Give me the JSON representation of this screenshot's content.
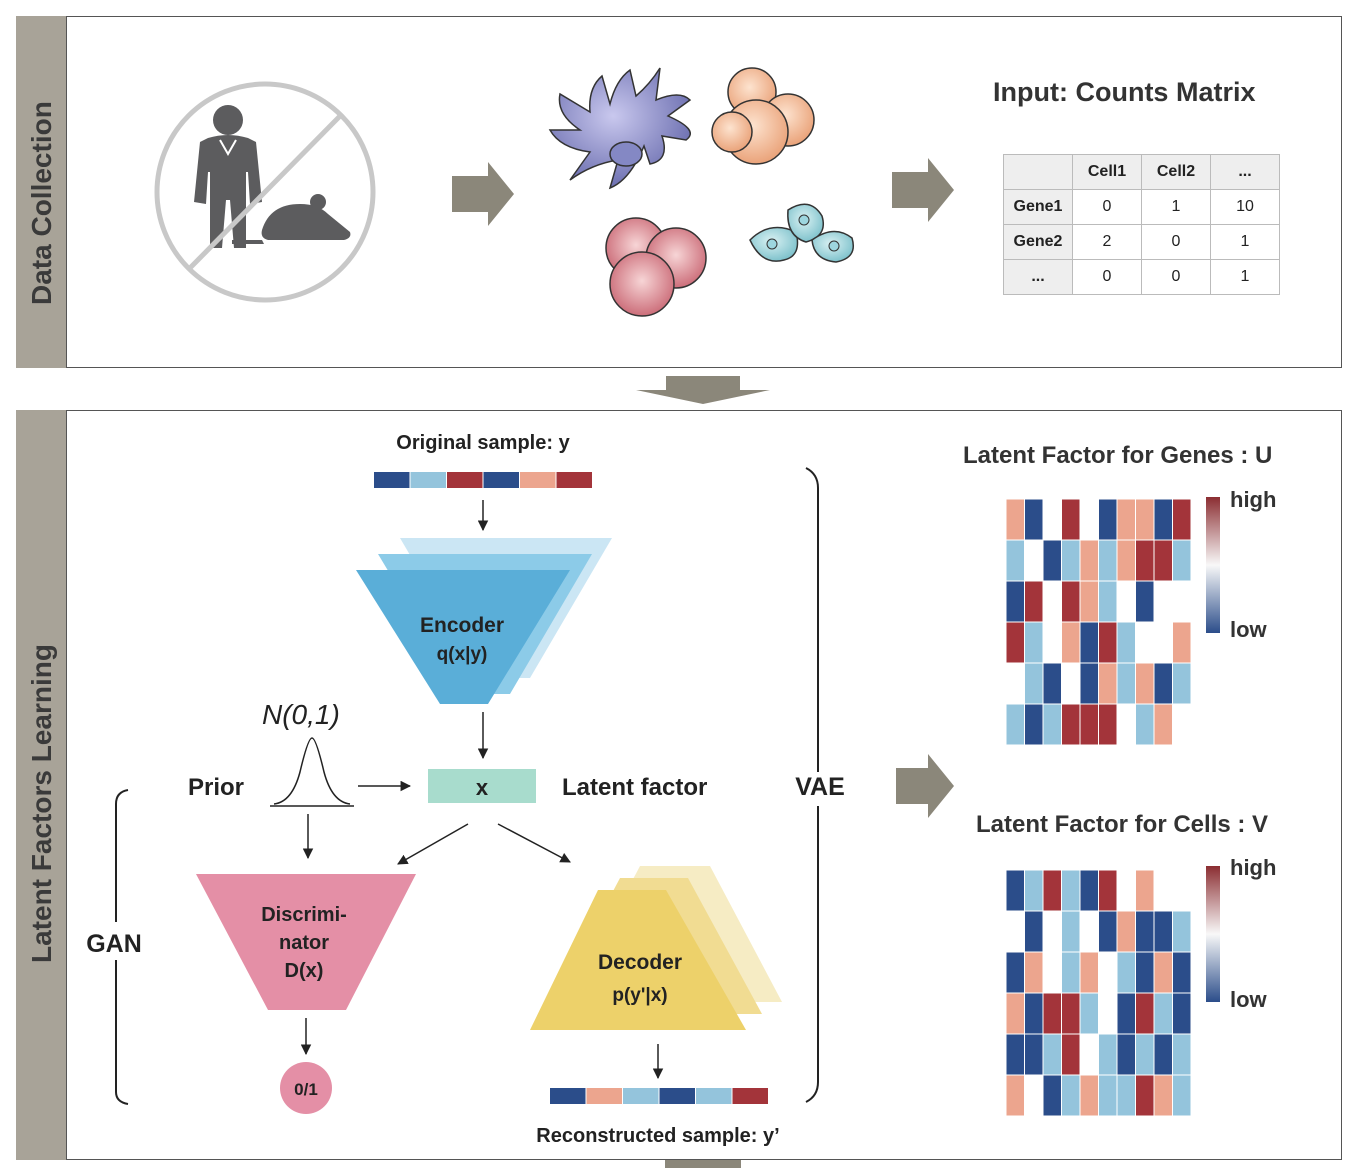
{
  "top_panel": {
    "side_label": "Data Collection",
    "matrix_title": "Input: Counts Matrix",
    "matrix": {
      "header": [
        "",
        "Cell1",
        "Cell2",
        "..."
      ],
      "rows": [
        [
          "Gene1",
          "0",
          "1",
          "10"
        ],
        [
          "Gene2",
          "2",
          "0",
          "1"
        ],
        [
          "...",
          "0",
          "0",
          "1"
        ]
      ]
    }
  },
  "bottom_panel": {
    "side_label": "Latent Factors Learning",
    "original_sample": "Original sample: y",
    "encoder": {
      "line1": "Encoder",
      "line2": "q(x|y)"
    },
    "prior_formula": "N(0,1)",
    "prior_label": "Prior",
    "latent_box": "x",
    "latent_label": "Latent factor",
    "vae_label": "VAE",
    "gan_label": "GAN",
    "discriminator": {
      "line1": "Discrimi-",
      "line2": "nator",
      "line3": "D(x)"
    },
    "output_label": "0/1",
    "decoder": {
      "line1": "Decoder",
      "line2": "p(y'|x)"
    },
    "reconstructed_sample": "Reconstructed sample: y’",
    "genes_title": "Latent Factor for Genes : U",
    "cells_title": "Latent Factor for Cells : V",
    "legend_high": "high",
    "legend_low": "low"
  },
  "colors": {
    "sidebar": "#a8a398",
    "arrow": "#8b877a",
    "encoder": "#5aaed8",
    "decoder": "#edd16a",
    "discriminator": "#e48fa6",
    "latent_box": "#a8dccd",
    "heat_dark_blue": "#2b4d8a",
    "heat_light_blue": "#94c4dc",
    "heat_salmon": "#eca58e",
    "heat_dark_red": "#a3343a"
  },
  "sample_y_colors": [
    "#2b4d8a",
    "#94c4dc",
    "#a3343a",
    "#2b4d8a",
    "#eca58e",
    "#a3343a"
  ],
  "sample_recon_colors": [
    "#2b4d8a",
    "#eca58e",
    "#94c4dc",
    "#2b4d8a",
    "#94c4dc",
    "#a3343a"
  ],
  "heatmap_U": [
    [
      "S",
      "B",
      "W",
      "R",
      "W",
      "B",
      "S",
      "S",
      "B",
      "R"
    ],
    [
      "L",
      "W",
      "B",
      "L",
      "S",
      "L",
      "S",
      "R",
      "R",
      "L"
    ],
    [
      "B",
      "R",
      "W",
      "R",
      "S",
      "L",
      "W",
      "B",
      "W",
      "W"
    ],
    [
      "R",
      "L",
      "W",
      "S",
      "B",
      "R",
      "L",
      "W",
      "W",
      "S"
    ],
    [
      "W",
      "L",
      "B",
      "W",
      "B",
      "S",
      "L",
      "S",
      "B",
      "L"
    ],
    [
      "L",
      "B",
      "L",
      "R",
      "R",
      "R",
      "W",
      "L",
      "S",
      "W"
    ]
  ],
  "heatmap_V": [
    [
      "B",
      "L",
      "R",
      "L",
      "B",
      "R",
      "W",
      "S",
      "W",
      "W"
    ],
    [
      "W",
      "B",
      "W",
      "L",
      "W",
      "B",
      "S",
      "B",
      "B",
      "L"
    ],
    [
      "B",
      "S",
      "W",
      "L",
      "S",
      "W",
      "L",
      "B",
      "S",
      "B"
    ],
    [
      "S",
      "B",
      "R",
      "R",
      "L",
      "W",
      "B",
      "R",
      "L",
      "B"
    ],
    [
      "B",
      "B",
      "L",
      "R",
      "W",
      "L",
      "B",
      "L",
      "B",
      "L"
    ],
    [
      "S",
      "W",
      "B",
      "L",
      "S",
      "L",
      "L",
      "R",
      "S",
      "L"
    ]
  ]
}
